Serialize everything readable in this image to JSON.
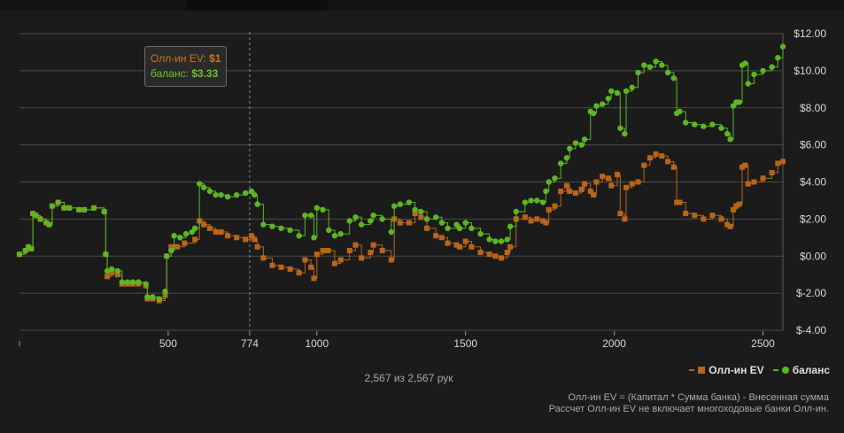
{
  "chart_data": {
    "type": "line",
    "xlim": [
      0,
      2567
    ],
    "ylim": [
      -4,
      12
    ],
    "y_ticks": [
      "$12.00",
      "$10.00",
      "$8.00",
      "$6.00",
      "$4.00",
      "$2.00",
      "$0.00",
      "$-2.00",
      "$-4.00"
    ],
    "y_tick_values": [
      12,
      10,
      8,
      6,
      4,
      2,
      0,
      -2,
      -4
    ],
    "x_ticks": [
      "500",
      "774",
      "1000",
      "1500",
      "2000",
      "2500"
    ],
    "x_tick_values": [
      500,
      774,
      1000,
      1500,
      2000,
      2500
    ],
    "grid": true,
    "hover_x": 774,
    "series": [
      {
        "name": "Олл-ин EV",
        "color": "#b8651b",
        "marker": "square",
        "points": [
          [
            0,
            0.1
          ],
          [
            20,
            0.3
          ],
          [
            30,
            0.5
          ],
          [
            40,
            0.4
          ],
          [
            45,
            2.3
          ],
          [
            55,
            2.2
          ],
          [
            70,
            2.0
          ],
          [
            90,
            1.8
          ],
          [
            100,
            1.7
          ],
          [
            110,
            2.7
          ],
          [
            130,
            2.9
          ],
          [
            150,
            2.6
          ],
          [
            200,
            2.5
          ],
          [
            250,
            2.6
          ],
          [
            285,
            2.4
          ],
          [
            290,
            0.1
          ],
          [
            295,
            -1.1
          ],
          [
            310,
            -0.9
          ],
          [
            330,
            -1.0
          ],
          [
            345,
            -1.5
          ],
          [
            400,
            -1.5
          ],
          [
            425,
            -1.6
          ],
          [
            430,
            -2.3
          ],
          [
            470,
            -2.4
          ],
          [
            490,
            -2.1
          ],
          [
            495,
            0.0
          ],
          [
            510,
            0.5
          ],
          [
            530,
            0.5
          ],
          [
            555,
            0.7
          ],
          [
            590,
            0.9
          ],
          [
            605,
            1.9
          ],
          [
            620,
            1.7
          ],
          [
            640,
            1.5
          ],
          [
            660,
            1.3
          ],
          [
            700,
            1.1
          ],
          [
            730,
            1.0
          ],
          [
            760,
            0.9
          ],
          [
            780,
            1.1
          ],
          [
            790,
            0.9
          ],
          [
            800,
            0.5
          ],
          [
            820,
            -0.1
          ],
          [
            850,
            -0.5
          ],
          [
            880,
            -0.6
          ],
          [
            910,
            -0.7
          ],
          [
            940,
            -0.9
          ],
          [
            960,
            -0.2
          ],
          [
            980,
            -0.6
          ],
          [
            990,
            -1.2
          ],
          [
            1000,
            0.1
          ],
          [
            1020,
            0.3
          ],
          [
            1060,
            -0.4
          ],
          [
            1080,
            -0.2
          ],
          [
            1110,
            0.3
          ],
          [
            1130,
            0.6
          ],
          [
            1150,
            -0.1
          ],
          [
            1180,
            0.2
          ],
          [
            1190,
            0.6
          ],
          [
            1220,
            0.3
          ],
          [
            1250,
            -0.2
          ],
          [
            1260,
            2.0
          ],
          [
            1280,
            1.8
          ],
          [
            1310,
            1.8
          ],
          [
            1330,
            2.3
          ],
          [
            1350,
            2.1
          ],
          [
            1370,
            1.5
          ],
          [
            1400,
            1.1
          ],
          [
            1420,
            1.0
          ],
          [
            1440,
            0.7
          ],
          [
            1470,
            0.6
          ],
          [
            1480,
            0.5
          ],
          [
            1500,
            0.8
          ],
          [
            1520,
            0.5
          ],
          [
            1550,
            0.2
          ],
          [
            1580,
            0.1
          ],
          [
            1600,
            0.0
          ],
          [
            1620,
            -0.1
          ],
          [
            1640,
            0.2
          ],
          [
            1650,
            0.5
          ],
          [
            1670,
            2.0
          ],
          [
            1700,
            2.1
          ],
          [
            1720,
            1.9
          ],
          [
            1740,
            2.0
          ],
          [
            1760,
            1.9
          ],
          [
            1770,
            1.8
          ],
          [
            1780,
            2.5
          ],
          [
            1800,
            2.7
          ],
          [
            1820,
            3.5
          ],
          [
            1840,
            3.8
          ],
          [
            1850,
            3.5
          ],
          [
            1870,
            3.4
          ],
          [
            1890,
            3.6
          ],
          [
            1900,
            3.9
          ],
          [
            1920,
            3.5
          ],
          [
            1930,
            3.3
          ],
          [
            1940,
            4.0
          ],
          [
            1960,
            4.3
          ],
          [
            1980,
            4.2
          ],
          [
            1990,
            3.8
          ],
          [
            2010,
            4.4
          ],
          [
            2020,
            2.3
          ],
          [
            2035,
            2.0
          ],
          [
            2040,
            3.7
          ],
          [
            2060,
            3.9
          ],
          [
            2080,
            4.0
          ],
          [
            2100,
            4.9
          ],
          [
            2120,
            5.3
          ],
          [
            2140,
            5.5
          ],
          [
            2160,
            5.4
          ],
          [
            2180,
            5.1
          ],
          [
            2200,
            4.8
          ],
          [
            2210,
            2.9
          ],
          [
            2220,
            2.9
          ],
          [
            2240,
            2.3
          ],
          [
            2270,
            2.2
          ],
          [
            2300,
            2.0
          ],
          [
            2330,
            2.2
          ],
          [
            2360,
            2.0
          ],
          [
            2380,
            1.7
          ],
          [
            2390,
            1.6
          ],
          [
            2400,
            2.5
          ],
          [
            2410,
            2.7
          ],
          [
            2420,
            2.8
          ],
          [
            2430,
            4.8
          ],
          [
            2440,
            4.9
          ],
          [
            2450,
            3.9
          ],
          [
            2470,
            4.0
          ],
          [
            2500,
            4.2
          ],
          [
            2530,
            4.5
          ],
          [
            2550,
            5.0
          ],
          [
            2567,
            5.1
          ]
        ]
      },
      {
        "name": "баланс",
        "color": "#5db524",
        "marker": "circle",
        "points": [
          [
            0,
            0.1
          ],
          [
            20,
            0.3
          ],
          [
            30,
            0.5
          ],
          [
            40,
            0.4
          ],
          [
            45,
            2.3
          ],
          [
            55,
            2.2
          ],
          [
            70,
            2.0
          ],
          [
            90,
            1.8
          ],
          [
            100,
            1.7
          ],
          [
            110,
            2.7
          ],
          [
            130,
            2.9
          ],
          [
            150,
            2.6
          ],
          [
            200,
            2.5
          ],
          [
            250,
            2.6
          ],
          [
            285,
            2.4
          ],
          [
            290,
            0.1
          ],
          [
            295,
            -0.8
          ],
          [
            310,
            -0.7
          ],
          [
            330,
            -0.8
          ],
          [
            345,
            -1.4
          ],
          [
            400,
            -1.4
          ],
          [
            425,
            -1.5
          ],
          [
            430,
            -2.2
          ],
          [
            470,
            -2.3
          ],
          [
            490,
            -1.9
          ],
          [
            495,
            0.0
          ],
          [
            510,
            0.3
          ],
          [
            520,
            1.1
          ],
          [
            540,
            1.0
          ],
          [
            560,
            1.2
          ],
          [
            580,
            1.3
          ],
          [
            590,
            1.5
          ],
          [
            605,
            3.9
          ],
          [
            620,
            3.7
          ],
          [
            640,
            3.5
          ],
          [
            660,
            3.3
          ],
          [
            700,
            3.2
          ],
          [
            730,
            3.3
          ],
          [
            760,
            3.4
          ],
          [
            780,
            3.5
          ],
          [
            790,
            3.3
          ],
          [
            800,
            2.8
          ],
          [
            820,
            1.7
          ],
          [
            850,
            1.6
          ],
          [
            880,
            1.5
          ],
          [
            910,
            1.4
          ],
          [
            940,
            1.1
          ],
          [
            960,
            2.2
          ],
          [
            980,
            2.2
          ],
          [
            990,
            1.0
          ],
          [
            1000,
            2.6
          ],
          [
            1020,
            2.5
          ],
          [
            1040,
            1.4
          ],
          [
            1060,
            1.1
          ],
          [
            1080,
            1.2
          ],
          [
            1110,
            1.9
          ],
          [
            1130,
            2.1
          ],
          [
            1150,
            1.7
          ],
          [
            1180,
            1.9
          ],
          [
            1190,
            2.2
          ],
          [
            1220,
            2.0
          ],
          [
            1250,
            1.3
          ],
          [
            1260,
            2.7
          ],
          [
            1280,
            2.8
          ],
          [
            1310,
            2.9
          ],
          [
            1330,
            2.5
          ],
          [
            1350,
            2.4
          ],
          [
            1370,
            2.0
          ],
          [
            1400,
            2.1
          ],
          [
            1420,
            1.8
          ],
          [
            1440,
            1.5
          ],
          [
            1470,
            1.7
          ],
          [
            1480,
            1.5
          ],
          [
            1500,
            1.8
          ],
          [
            1520,
            1.5
          ],
          [
            1550,
            1.2
          ],
          [
            1580,
            0.9
          ],
          [
            1600,
            0.8
          ],
          [
            1620,
            0.8
          ],
          [
            1640,
            0.9
          ],
          [
            1650,
            1.6
          ],
          [
            1670,
            2.4
          ],
          [
            1700,
            2.9
          ],
          [
            1720,
            3.0
          ],
          [
            1740,
            3.0
          ],
          [
            1760,
            2.9
          ],
          [
            1770,
            3.5
          ],
          [
            1780,
            4.0
          ],
          [
            1800,
            4.2
          ],
          [
            1820,
            5.0
          ],
          [
            1840,
            5.3
          ],
          [
            1850,
            5.8
          ],
          [
            1870,
            6.1
          ],
          [
            1890,
            6.0
          ],
          [
            1900,
            6.3
          ],
          [
            1920,
            7.8
          ],
          [
            1930,
            7.7
          ],
          [
            1940,
            8.1
          ],
          [
            1960,
            8.2
          ],
          [
            1980,
            8.5
          ],
          [
            1990,
            8.9
          ],
          [
            2010,
            8.8
          ],
          [
            2020,
            6.9
          ],
          [
            2035,
            6.6
          ],
          [
            2040,
            8.9
          ],
          [
            2060,
            9.1
          ],
          [
            2080,
            9.9
          ],
          [
            2100,
            10.3
          ],
          [
            2120,
            10.2
          ],
          [
            2140,
            10.5
          ],
          [
            2160,
            10.3
          ],
          [
            2180,
            9.9
          ],
          [
            2200,
            9.6
          ],
          [
            2210,
            7.7
          ],
          [
            2220,
            7.8
          ],
          [
            2240,
            7.2
          ],
          [
            2270,
            7.1
          ],
          [
            2300,
            7.0
          ],
          [
            2330,
            7.1
          ],
          [
            2360,
            6.9
          ],
          [
            2380,
            6.6
          ],
          [
            2390,
            6.3
          ],
          [
            2400,
            8.1
          ],
          [
            2410,
            8.3
          ],
          [
            2420,
            8.3
          ],
          [
            2430,
            10.3
          ],
          [
            2440,
            10.4
          ],
          [
            2450,
            9.3
          ],
          [
            2470,
            9.8
          ],
          [
            2500,
            10.0
          ],
          [
            2530,
            10.2
          ],
          [
            2550,
            10.7
          ],
          [
            2567,
            11.3
          ]
        ]
      }
    ]
  },
  "tooltip": {
    "ev_label": "Олл-ин EV: ",
    "ev_value": "$1",
    "balance_label": "баланс: ",
    "balance_value": "$3.33"
  },
  "legend": {
    "ev_label": "Олл-ин EV",
    "balance_label": "баланс"
  },
  "hands_count": "2,567 из 2,567 рук",
  "footnote": {
    "line1": "Олл-ин EV = (Капитал * Сумма банка) - Внесенная сумма",
    "line2": "Рассчет Олл-ин EV не включает многоходовые банки Олл-ин."
  }
}
